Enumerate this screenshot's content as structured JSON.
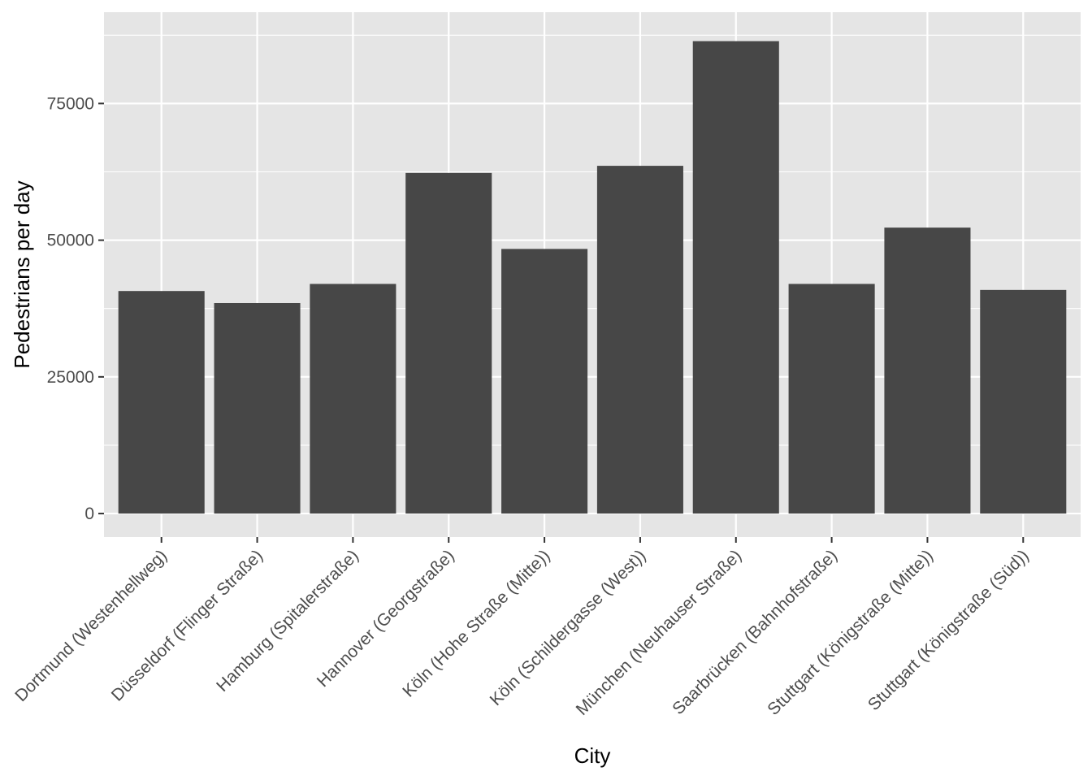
{
  "chart_data": {
    "type": "bar",
    "categories": [
      "Dortmund (Westenhellweg)",
      "Düsseldorf (Flinger Straße)",
      "Hamburg (Spitalerstraße)",
      "Hannover (Georgstraße)",
      "Köln (Hohe Straße (Mitte))",
      "Köln (Schildergasse (West))",
      "München (Neuhauser Straße)",
      "Saarbrücken (Bahnhofstraße)",
      "Stuttgart (Königstraße (Mitte))",
      "Stuttgart (Königstraße (Süd))"
    ],
    "values": [
      40700,
      38500,
      42000,
      62300,
      48400,
      63600,
      86400,
      42000,
      52300,
      40900
    ],
    "xlabel": "City",
    "ylabel": "Pedestrians per day",
    "ylim": [
      -4300,
      91700
    ],
    "y_ticks": [
      0,
      25000,
      50000,
      75000
    ],
    "y_tick_labels": [
      "0",
      "25000",
      "50000",
      "75000"
    ],
    "grid": true,
    "bar_color": "#474747",
    "panel_color": "#e5e5e5",
    "grid_color": "#ffffff"
  }
}
